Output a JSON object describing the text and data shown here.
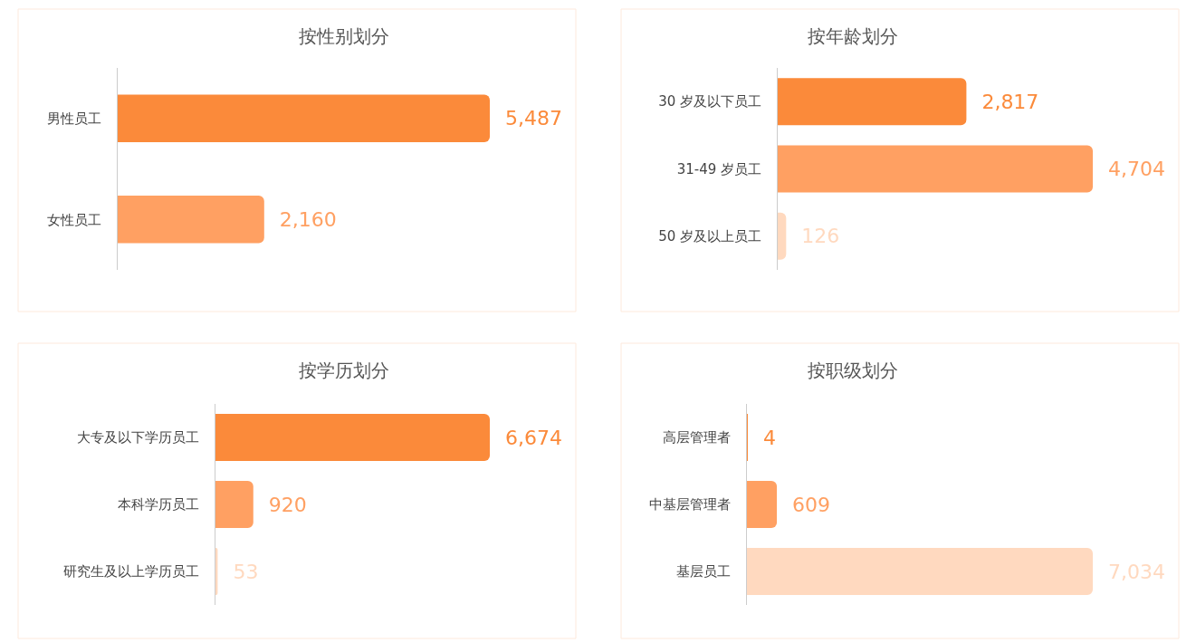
{
  "chart_data": [
    {
      "type": "bar",
      "orientation": "horizontal",
      "title": "按性别划分",
      "categories": [
        "男性员工",
        "女性员工"
      ],
      "values": [
        5487,
        2160
      ],
      "value_labels": [
        "5,487",
        "2,160"
      ],
      "colors": [
        "#fb8a3a",
        "#ffa062"
      ],
      "tick_labels": "y"
    },
    {
      "type": "bar",
      "orientation": "horizontal",
      "title": "按年龄划分",
      "categories": [
        "30 岁及以下员工",
        "31-49 岁员工",
        "50 岁及以上员工"
      ],
      "values": [
        2817,
        4704,
        126
      ],
      "value_labels": [
        "2,817",
        "4,704",
        "126"
      ],
      "colors": [
        "#fb8a3a",
        "#ffa062",
        "#ffd9bf"
      ],
      "tick_labels": "y"
    },
    {
      "type": "bar",
      "orientation": "horizontal",
      "title": "按学历划分",
      "categories": [
        "大专及以下学历员工",
        "本科学历员工",
        "研究生及以上学历员工"
      ],
      "values": [
        6674,
        920,
        53
      ],
      "value_labels": [
        "6,674",
        "920",
        "53"
      ],
      "colors": [
        "#fb8a3a",
        "#ffa062",
        "#ffd9bf"
      ],
      "tick_labels": "y"
    },
    {
      "type": "bar",
      "orientation": "horizontal",
      "title": "按职级划分",
      "categories": [
        "高层管理者",
        "中基层管理者",
        "基层员工"
      ],
      "values": [
        4,
        609,
        7034
      ],
      "value_labels": [
        "4",
        "609",
        "7,034"
      ],
      "colors": [
        "#fb8a3a",
        "#ffa062",
        "#ffd9bf"
      ],
      "tick_labels": "y"
    }
  ]
}
